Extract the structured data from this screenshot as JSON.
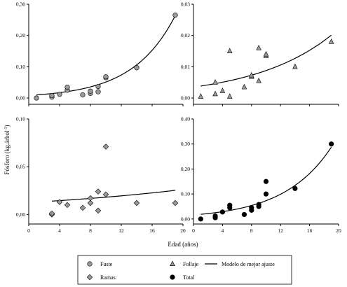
{
  "chart_data": {
    "type": "scatter",
    "xlabel": "Edad (años)",
    "ylabel": "Fósforo (kg.árbol",
    "ylabel_sup": "-1",
    "ylabel_close": ")",
    "panels": [
      {
        "id": "fuste",
        "xlim": [
          0,
          20
        ],
        "ylim": [
          -0.02,
          0.3
        ],
        "xticks": [
          0,
          4,
          8,
          12,
          16,
          20
        ],
        "yticks": [
          0.0,
          0.1,
          0.2,
          0.3
        ],
        "ytick_labels": [
          "0,00",
          "0,10",
          "0,20",
          "0,30"
        ],
        "series": [
          {
            "marker": "circle",
            "fill": "#9a9a9a",
            "x": [
              1,
              3,
              3,
              4,
              5,
              5,
              7,
              8,
              8,
              9,
              9,
              10,
              10,
              14,
              19
            ],
            "y": [
              0.0,
              0.003,
              0.008,
              0.012,
              0.025,
              0.035,
              0.01,
              0.015,
              0.022,
              0.02,
              0.037,
              0.065,
              0.068,
              0.097,
              0.265
            ]
          }
        ],
        "fit": {
          "a": 0.0083,
          "b": 0.182,
          "x_from": 1,
          "x_to": 19
        }
      },
      {
        "id": "follaje",
        "xlim": [
          0,
          20
        ],
        "ylim": [
          -0.002,
          0.03
        ],
        "xticks": [
          0,
          4,
          8,
          12,
          16,
          20
        ],
        "yticks": [
          0.0,
          0.01,
          0.02,
          0.03
        ],
        "ytick_labels": [
          "0,00",
          "0,01",
          "0,02",
          "0,03"
        ],
        "series": [
          {
            "marker": "triangle",
            "fill": "#9a9a9a",
            "x": [
              1,
              3,
              3,
              4,
              5,
              5,
              7,
              8,
              8,
              9,
              9,
              10,
              10,
              14,
              19
            ],
            "y": [
              0.0005,
              0.0013,
              0.005,
              0.0023,
              0.0005,
              0.015,
              0.0035,
              0.0068,
              0.0073,
              0.0055,
              0.016,
              0.0135,
              0.014,
              0.01,
              0.018
            ]
          }
        ],
        "fit": {
          "a": 0.0035,
          "b": 0.092,
          "x_from": 1,
          "x_to": 19
        }
      },
      {
        "id": "ramas",
        "xlim": [
          0,
          20
        ],
        "ylim": [
          -0.01,
          0.1
        ],
        "xticks": [
          0,
          4,
          8,
          12,
          16,
          20
        ],
        "xtick_labels": [
          "0",
          "4",
          "8",
          "12",
          "16",
          "20"
        ],
        "yticks": [
          0.0,
          0.05,
          0.1
        ],
        "ytick_labels": [
          "0,00",
          "0,05",
          "0,10"
        ],
        "series": [
          {
            "marker": "diamond",
            "fill": "#9a9a9a",
            "x": [
              3,
              3,
              4,
              5,
              7,
              8,
              8,
              9,
              9,
              10,
              10,
              14,
              19
            ],
            "y": [
              0.0,
              0.001,
              0.013,
              0.01,
              0.007,
              0.012,
              0.017,
              0.004,
              0.024,
              0.021,
              0.071,
              0.012,
              0.012
            ]
          }
        ],
        "fit": {
          "a": 0.0125,
          "b": 0.037,
          "x_from": 3,
          "x_to": 19
        }
      },
      {
        "id": "total",
        "xlim": [
          0,
          20
        ],
        "ylim": [
          -0.02,
          0.4
        ],
        "xticks": [
          0,
          4,
          8,
          12,
          16,
          20
        ],
        "xtick_labels": [
          "0",
          "4",
          "8",
          "12",
          "16",
          "20"
        ],
        "yticks": [
          0.0,
          0.1,
          0.2,
          0.3,
          0.4
        ],
        "ytick_labels": [
          "0,00",
          "0,10",
          "0,20",
          "0,30",
          "0,40"
        ],
        "series": [
          {
            "marker": "circle",
            "fill": "#000000",
            "x": [
              1,
              3,
              3,
              4,
              5,
              5,
              7,
              8,
              8,
              9,
              9,
              10,
              10,
              14,
              19
            ],
            "y": [
              0.0,
              0.005,
              0.012,
              0.028,
              0.045,
              0.055,
              0.018,
              0.035,
              0.045,
              0.05,
              0.058,
              0.1,
              0.15,
              0.122,
              0.3
            ]
          }
        ],
        "fit": {
          "a": 0.016,
          "b": 0.152,
          "x_from": 1,
          "x_to": 19
        }
      }
    ],
    "legend": [
      {
        "marker": "circle",
        "fill": "#9a9a9a",
        "label": "Fuste"
      },
      {
        "marker": "triangle",
        "fill": "#9a9a9a",
        "label": "Follaje"
      },
      {
        "marker": "line",
        "label": "Modelo de mejor ajuste"
      },
      {
        "marker": "diamond",
        "fill": "#9a9a9a",
        "label": "Ramas"
      },
      {
        "marker": "circle",
        "fill": "#000000",
        "label": "Total"
      }
    ]
  }
}
